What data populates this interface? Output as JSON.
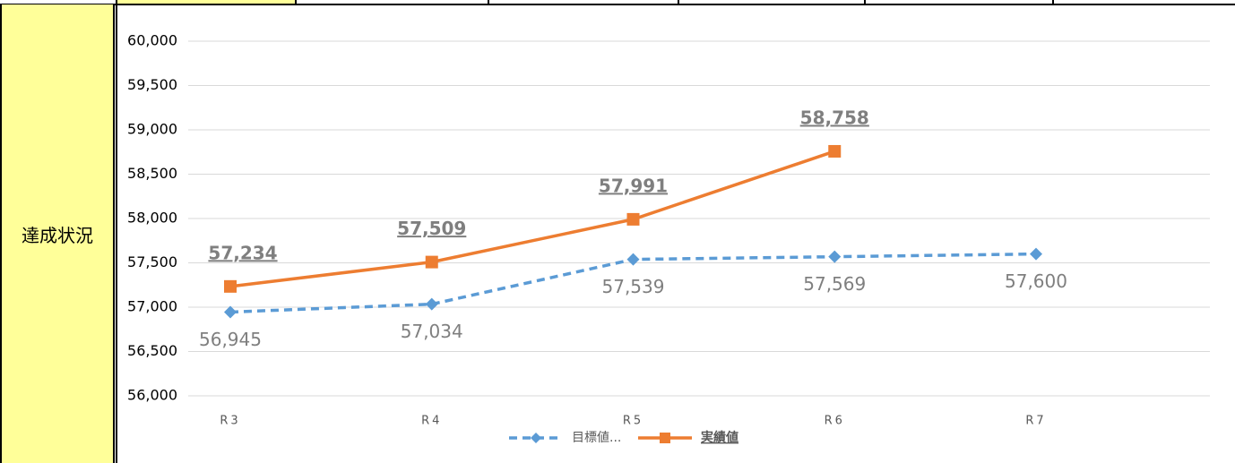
{
  "row_label": "達成状況",
  "chart_data": {
    "type": "line",
    "categories": [
      "R3",
      "R4",
      "R5",
      "R6",
      "R7"
    ],
    "ylim": [
      56000,
      60000
    ],
    "yticks": [
      {
        "value": 56000,
        "label": "56,000"
      },
      {
        "value": 56500,
        "label": "56,500"
      },
      {
        "value": 57000,
        "label": "57,000"
      },
      {
        "value": 57500,
        "label": "57,500"
      },
      {
        "value": 58000,
        "label": "58,000"
      },
      {
        "value": 58500,
        "label": "58,500"
      },
      {
        "value": 59000,
        "label": "59,000"
      },
      {
        "value": 59500,
        "label": "59,500"
      },
      {
        "value": 60000,
        "label": "60,000"
      }
    ],
    "grid": true,
    "legend": "bottom",
    "series": [
      {
        "name": "目標値...",
        "color": "#5b9bd5",
        "dashed": true,
        "marker": "diamond",
        "values": [
          56945,
          57034,
          57539,
          57569,
          57600
        ],
        "value_labels": [
          "56,945",
          "57,034",
          "57,539",
          "57,569",
          "57,600"
        ]
      },
      {
        "name": "実績値",
        "color": "#ed7d31",
        "dashed": false,
        "marker": "square",
        "values": [
          57234,
          57509,
          57991,
          58758,
          null
        ],
        "value_labels": [
          "57,234",
          "57,509",
          "57,991",
          "58,758",
          null
        ]
      }
    ]
  }
}
